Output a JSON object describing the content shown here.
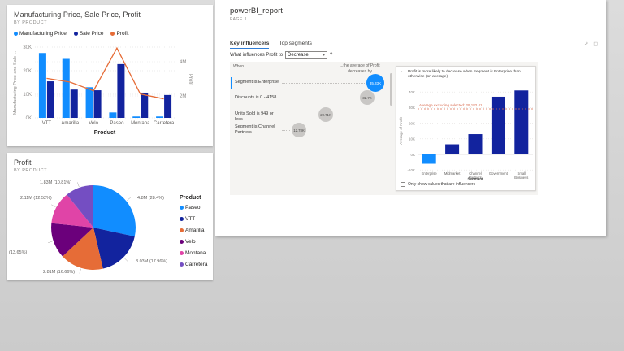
{
  "report": {
    "title": "powerBI_report",
    "page_label": "PAGE 1",
    "tabs": [
      {
        "label": "Key influencers",
        "active": true
      },
      {
        "label": "Top segments",
        "active": false
      }
    ],
    "question": {
      "prefix": "What influences Profit to",
      "dropdown_value": "Decrease",
      "suffix": "?"
    },
    "influencers": {
      "when_header": "When...",
      "effect_header": "...the average of Profit decreases by",
      "rows": [
        {
          "label": "Segment is Enterprise",
          "bubble": "35.33K",
          "selected": true
        },
        {
          "label": "Discounts is 0 - 4158",
          "bubble": "32.7K",
          "selected": false
        },
        {
          "label": "Units Sold is 949 or less",
          "bubble": "20.71K",
          "selected": false
        },
        {
          "label": "Segment is Channel Partners",
          "bubble": "12.78K",
          "selected": false
        }
      ]
    },
    "detail": {
      "header": "Profit is more likely to decrease when Segment is Enterprise than otherwise (on average).",
      "checkbox_label": "Only show values that are influencers",
      "checkbox_checked": false
    }
  },
  "icons": {
    "share": "↗",
    "comment": "◻",
    "caret": "▾",
    "back": "←"
  },
  "colors": {
    "accent_blue": "#118DFF",
    "navy": "#12239E",
    "orange": "#E66C37",
    "bubble_gray": "#C9C7C5",
    "avg_line": "#D96B4F",
    "tab_underline": "#2E7CD6"
  },
  "chart_data": [
    {
      "id": "combo",
      "type": "bar",
      "title": "Manufacturing Price, Sale Price, Profit",
      "subtitle": "BY PRODUCT",
      "categories": [
        "VTT",
        "Amarilla",
        "Velo",
        "Paseo",
        "Montana",
        "Carretera"
      ],
      "series": [
        {
          "name": "Manufacturing Price",
          "type": "bar",
          "color": "#118DFF",
          "values": [
            27500,
            25000,
            13000,
            2300,
            600,
            600
          ]
        },
        {
          "name": "Sale Price",
          "type": "bar",
          "color": "#12239E",
          "values": [
            15500,
            12000,
            11700,
            22800,
            10700,
            9700
          ]
        },
        {
          "name": "Profit",
          "type": "line",
          "axis": "right",
          "color": "#E66C37",
          "values": [
            3030000,
            2810000,
            2300000,
            4800000,
            2110000,
            1830000
          ]
        }
      ],
      "xlabel": "Product",
      "ylabel_left": "Manufacturing Price and Sale ...",
      "ylabel_right": "Profit",
      "yticks_left": [
        "30K",
        "20K",
        "10K",
        "0K"
      ],
      "yticks_right": [
        "4M",
        "2M"
      ],
      "ylim_left": [
        0,
        30000
      ],
      "ylim_right": [
        0,
        5000000
      ],
      "grid": true,
      "legend_position": "top"
    },
    {
      "id": "profit-pie",
      "type": "pie",
      "title": "Profit",
      "subtitle": "BY PRODUCT",
      "legend_title": "Product",
      "legend_position": "right",
      "slices": [
        {
          "label": "Paseo",
          "value_m": 4.8,
          "pct": 28.4,
          "color": "#118DFF",
          "callout": "4.8M (28.4%)"
        },
        {
          "label": "VTT",
          "value_m": 3.03,
          "pct": 17.96,
          "color": "#12239E",
          "callout": "3.03M (17.96%)"
        },
        {
          "label": "Amarilla",
          "value_m": 2.81,
          "pct": 16.66,
          "color": "#E66C37",
          "callout": "2.81M (16.66%)"
        },
        {
          "label": "Velo",
          "value_m": 2.3,
          "pct": 13.65,
          "color": "#6B007B",
          "callout": "(13.65%)"
        },
        {
          "label": "Montana",
          "value_m": 2.11,
          "pct": 12.52,
          "color": "#E044A7",
          "callout": "2.11M (12.52%)"
        },
        {
          "label": "Carretera",
          "value_m": 1.83,
          "pct": 10.81,
          "color": "#744EC2",
          "callout": "1.83M (10.81%)"
        }
      ]
    },
    {
      "id": "influencer-detail",
      "type": "bar",
      "categories": [
        "Enterprise",
        "Midmarket",
        "Channel Partners",
        "Government",
        "Small Business"
      ],
      "values": [
        -6000,
        6500,
        13000,
        37000,
        41000
      ],
      "bar_colors": [
        "#118DFF",
        "#12239E",
        "#12239E",
        "#12239E",
        "#12239E"
      ],
      "xlabel": "Segment",
      "ylabel": "Average of Profit",
      "yticks": [
        "40K",
        "30K",
        "20K",
        "10K",
        "0K",
        "-10K"
      ],
      "ylim": [
        -10000,
        45000
      ],
      "grid": true,
      "avg_line": {
        "value": 29182.41,
        "label": "Average excluding selected: 29,182.41",
        "color": "#D96B4F"
      }
    }
  ]
}
